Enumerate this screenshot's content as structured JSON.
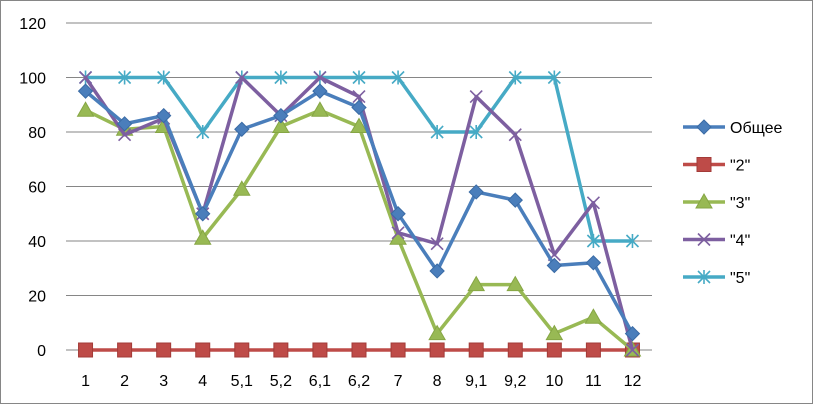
{
  "chart_data": {
    "type": "line",
    "categories": [
      "1",
      "2",
      "3",
      "4",
      "5,1",
      "5,2",
      "6,1",
      "6,2",
      "7",
      "8",
      "9,1",
      "9,2",
      "10",
      "11",
      "12"
    ],
    "ylim": [
      0,
      120
    ],
    "yticks": [
      0,
      20,
      40,
      60,
      80,
      100,
      120
    ],
    "grid": "horizontal",
    "legend_position": "right",
    "series": [
      {
        "name": "Общее",
        "color": "#4a7ebb",
        "marker": "diamond",
        "values": [
          95,
          83,
          86,
          50,
          81,
          86,
          95,
          89,
          50,
          29,
          58,
          55,
          31,
          32,
          6
        ]
      },
      {
        "name": "\"2\"",
        "color": "#be4b48",
        "marker": "square",
        "values": [
          0,
          0,
          0,
          0,
          0,
          0,
          0,
          0,
          0,
          0,
          0,
          0,
          0,
          0,
          0
        ]
      },
      {
        "name": "\"3\"",
        "color": "#98b954",
        "marker": "triangle",
        "values": [
          88,
          81,
          82,
          41,
          59,
          82,
          88,
          82,
          41,
          6,
          24,
          24,
          6,
          12,
          0
        ]
      },
      {
        "name": "\"4\"",
        "color": "#7d5fa0",
        "marker": "x",
        "values": [
          100,
          79,
          85,
          50,
          100,
          86,
          100,
          93,
          43,
          39,
          93,
          79,
          35,
          54,
          0
        ]
      },
      {
        "name": "\"5\"",
        "color": "#46aac5",
        "marker": "star",
        "values": [
          100,
          100,
          100,
          80,
          100,
          100,
          100,
          100,
          100,
          80,
          80,
          100,
          100,
          40,
          40
        ]
      }
    ]
  }
}
